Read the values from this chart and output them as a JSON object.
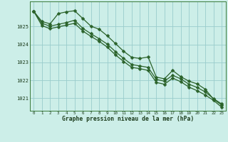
{
  "title": "Graphe pression niveau de la mer (hPa)",
  "background_color": "#cceee8",
  "grid_color": "#99cccc",
  "line_color": "#2a622a",
  "ylim": [
    1020.3,
    1026.4
  ],
  "xlim": [
    -0.5,
    23.5
  ],
  "yticks": [
    1021,
    1022,
    1023,
    1024,
    1025
  ],
  "xticks": [
    0,
    1,
    2,
    3,
    4,
    5,
    6,
    7,
    8,
    9,
    10,
    11,
    12,
    13,
    14,
    15,
    16,
    17,
    18,
    19,
    20,
    21,
    22,
    23
  ],
  "line1_x": [
    0,
    1,
    2,
    3,
    4,
    5,
    6,
    7,
    8,
    9,
    10,
    11,
    12,
    13,
    14,
    15,
    16,
    17,
    18,
    19,
    20,
    21,
    22,
    23
  ],
  "line1_y": [
    1025.85,
    1025.28,
    1025.15,
    1025.72,
    1025.82,
    1025.88,
    1025.45,
    1025.02,
    1024.85,
    1024.48,
    1024.05,
    1023.62,
    1023.28,
    1023.22,
    1023.3,
    1022.18,
    1022.08,
    1022.55,
    1022.2,
    1021.95,
    1021.8,
    1021.5,
    1020.95,
    1020.62
  ],
  "line2_x": [
    0,
    1,
    2,
    3,
    4,
    5,
    6,
    7,
    8,
    9,
    10,
    11,
    12,
    13,
    14,
    15,
    16,
    17,
    18,
    19,
    20,
    21,
    22,
    23
  ],
  "line2_y": [
    1025.85,
    1025.18,
    1025.02,
    1025.12,
    1025.22,
    1025.35,
    1024.9,
    1024.6,
    1024.32,
    1024.02,
    1023.6,
    1023.22,
    1022.88,
    1022.8,
    1022.72,
    1022.05,
    1021.95,
    1022.28,
    1022.08,
    1021.78,
    1021.6,
    1021.35,
    1020.98,
    1020.68
  ],
  "line3_x": [
    0,
    1,
    2,
    3,
    4,
    5,
    6,
    7,
    8,
    9,
    10,
    11,
    12,
    13,
    14,
    15,
    16,
    17,
    18,
    19,
    20,
    21,
    22,
    23
  ],
  "line3_y": [
    1025.85,
    1025.05,
    1024.88,
    1024.98,
    1025.08,
    1025.18,
    1024.75,
    1024.45,
    1024.18,
    1023.85,
    1023.42,
    1023.05,
    1022.72,
    1022.65,
    1022.55,
    1021.88,
    1021.78,
    1022.12,
    1021.92,
    1021.62,
    1021.42,
    1021.18,
    1020.88,
    1020.5
  ]
}
